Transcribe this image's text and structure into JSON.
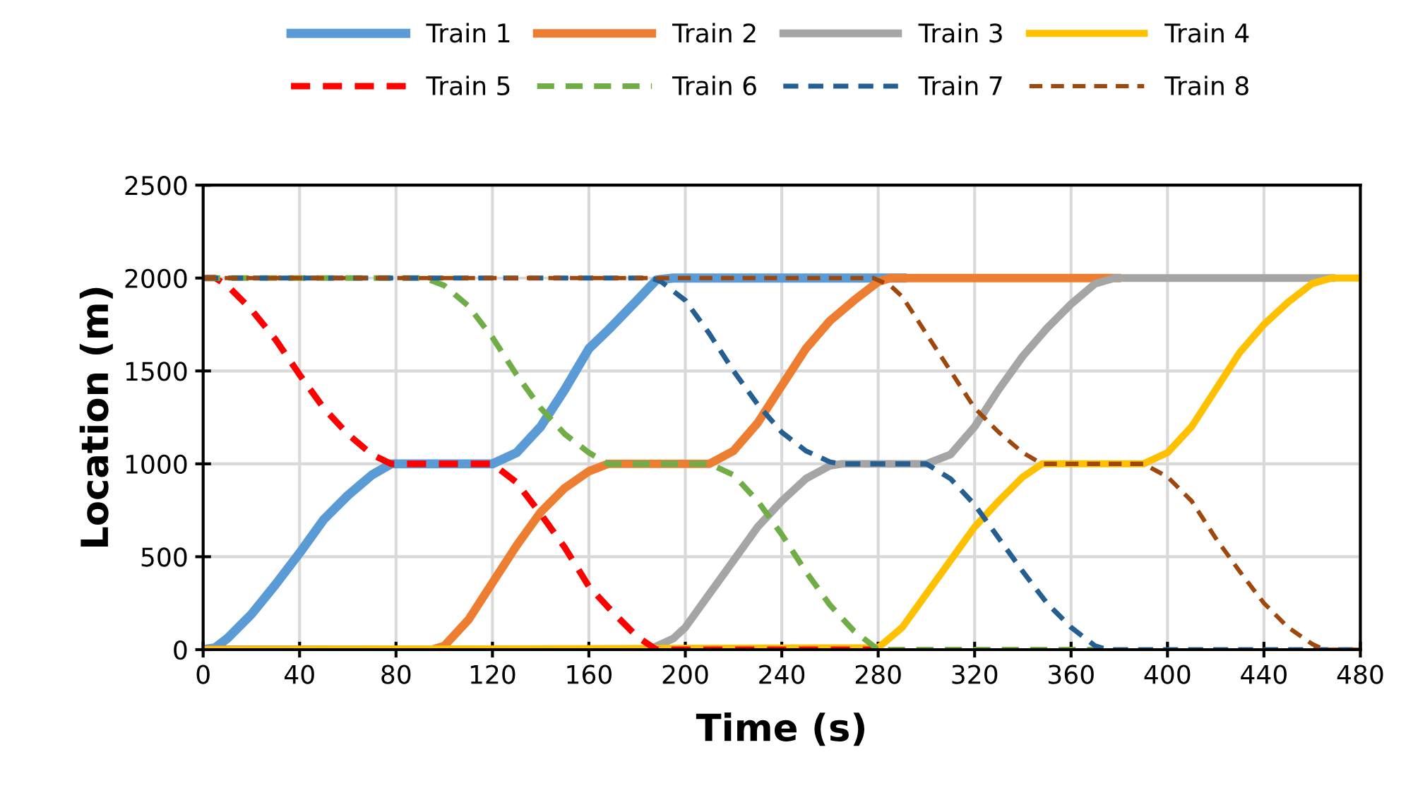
{
  "chart_data": {
    "type": "line",
    "xlabel": "Time (s)",
    "ylabel": "Location (m)",
    "xlim": [
      0,
      480
    ],
    "ylim": [
      0,
      2500
    ],
    "xticks": [
      0,
      40,
      80,
      120,
      160,
      200,
      240,
      280,
      320,
      360,
      400,
      440,
      480
    ],
    "yticks": [
      0,
      500,
      1000,
      1500,
      2000,
      2500
    ],
    "grid": true,
    "legend": "top",
    "marker": "none",
    "series": [
      {
        "name": "Train 1",
        "color": "#5b9bd5",
        "line_style": "solid",
        "x": [
          0,
          5,
          10,
          20,
          30,
          40,
          50,
          60,
          70,
          78,
          120,
          130,
          140,
          150,
          160,
          168,
          180,
          188,
          195,
          290
        ],
        "values": [
          0,
          10,
          60,
          190,
          350,
          520,
          700,
          830,
          940,
          1000,
          1000,
          1060,
          1200,
          1400,
          1620,
          1720,
          1880,
          1990,
          2000,
          2000
        ]
      },
      {
        "name": "Train 2",
        "color": "#ed7d31",
        "line_style": "solid",
        "x": [
          0,
          95,
          100,
          110,
          120,
          130,
          140,
          150,
          160,
          168,
          210,
          220,
          230,
          240,
          250,
          260,
          270,
          280,
          285,
          379
        ],
        "values": [
          0,
          0,
          20,
          160,
          360,
          560,
          740,
          870,
          960,
          1000,
          1000,
          1070,
          1220,
          1420,
          1620,
          1770,
          1880,
          1980,
          2000,
          2000
        ]
      },
      {
        "name": "Train 3",
        "color": "#a5a5a5",
        "line_style": "solid",
        "x": [
          0,
          185,
          195,
          200,
          210,
          220,
          230,
          240,
          250,
          260,
          265,
          300,
          310,
          320,
          330,
          340,
          350,
          360,
          370,
          378,
          468
        ],
        "values": [
          0,
          0,
          60,
          120,
          300,
          480,
          660,
          800,
          920,
          990,
          1000,
          1000,
          1050,
          1200,
          1400,
          1580,
          1730,
          1860,
          1970,
          2000,
          2000
        ]
      },
      {
        "name": "Train 4",
        "color": "#ffc000",
        "line_style": "solid",
        "x": [
          0,
          280,
          290,
          300,
          310,
          320,
          330,
          340,
          348,
          390,
          400,
          410,
          420,
          430,
          440,
          450,
          460,
          468,
          480
        ],
        "values": [
          0,
          10,
          120,
          300,
          480,
          660,
          800,
          930,
          1000,
          1000,
          1060,
          1200,
          1400,
          1600,
          1750,
          1870,
          1970,
          2000,
          2000
        ]
      },
      {
        "name": "Train 5",
        "color": "#ff0000",
        "line_style": "dashed",
        "x": [
          0,
          5,
          10,
          20,
          30,
          40,
          50,
          60,
          70,
          78,
          120,
          130,
          140,
          150,
          160,
          170,
          180,
          188,
          280
        ],
        "values": [
          2000,
          2000,
          1960,
          1830,
          1670,
          1480,
          1300,
          1160,
          1050,
          1000,
          1000,
          900,
          730,
          550,
          340,
          200,
          70,
          0,
          0
        ]
      },
      {
        "name": "Train 6",
        "color": "#70ad47",
        "line_style": "dashed",
        "x": [
          0,
          92,
          100,
          110,
          120,
          130,
          140,
          150,
          160,
          168,
          210,
          220,
          230,
          240,
          250,
          260,
          270,
          280,
          370
        ],
        "values": [
          2000,
          2000,
          1960,
          1850,
          1680,
          1480,
          1300,
          1160,
          1060,
          1000,
          1000,
          940,
          800,
          620,
          420,
          240,
          100,
          0,
          0
        ]
      },
      {
        "name": "Train 7",
        "color": "#255e91",
        "line_style": "dashed",
        "x": [
          0,
          186,
          190,
          200,
          210,
          220,
          230,
          240,
          250,
          260,
          265,
          300,
          310,
          320,
          330,
          340,
          350,
          360,
          370,
          375,
          480
        ],
        "values": [
          2000,
          2000,
          1980,
          1880,
          1700,
          1500,
          1320,
          1170,
          1070,
          1010,
          1000,
          1000,
          920,
          780,
          600,
          420,
          250,
          120,
          20,
          0,
          0
        ]
      },
      {
        "name": "Train 8",
        "color": "#9e480e",
        "line_style": "dashed",
        "x": [
          0,
          278,
          285,
          290,
          300,
          310,
          320,
          330,
          340,
          348,
          390,
          400,
          410,
          420,
          430,
          440,
          450,
          460,
          465,
          480
        ],
        "values": [
          2000,
          2000,
          1960,
          1900,
          1700,
          1500,
          1300,
          1170,
          1060,
          1000,
          1000,
          930,
          800,
          600,
          420,
          250,
          120,
          30,
          0,
          0
        ]
      }
    ]
  }
}
